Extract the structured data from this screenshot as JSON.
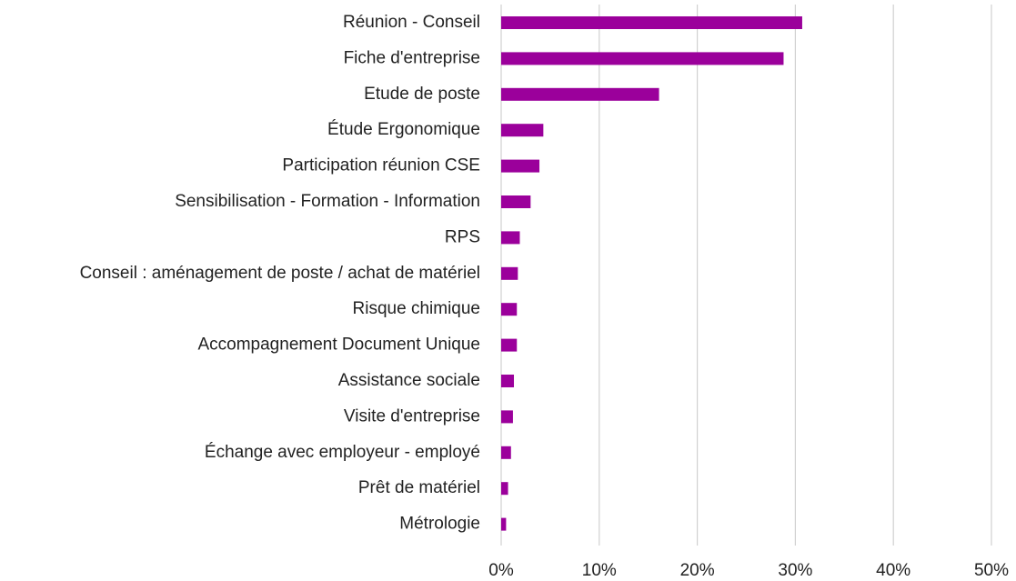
{
  "chart_data": {
    "type": "bar",
    "orientation": "horizontal",
    "categories": [
      "Réunion - Conseil",
      "Fiche d'entreprise",
      "Etude de poste",
      "Étude Ergonomique",
      "Participation réunion CSE",
      "Sensibilisation - Formation - Information",
      "RPS",
      "Conseil : aménagement de poste / achat de matériel",
      "Risque chimique",
      "Accompagnement Document Unique",
      "Assistance sociale",
      "Visite d'entreprise",
      "Échange avec employeur - employé",
      "Prêt de matériel",
      "Métrologie"
    ],
    "values": [
      30.7,
      28.8,
      16.1,
      4.3,
      3.9,
      3.0,
      1.9,
      1.7,
      1.6,
      1.6,
      1.3,
      1.2,
      1.0,
      0.7,
      0.5
    ],
    "color": "#9b009b",
    "xlim": [
      0,
      50
    ],
    "xticks": [
      {
        "value": 0,
        "label": "0%"
      },
      {
        "value": 10,
        "label": "10%"
      },
      {
        "value": 20,
        "label": "20%"
      },
      {
        "value": 30,
        "label": "30%"
      },
      {
        "value": 40,
        "label": "40%"
      },
      {
        "value": 50,
        "label": "50%"
      }
    ],
    "grid": true
  }
}
